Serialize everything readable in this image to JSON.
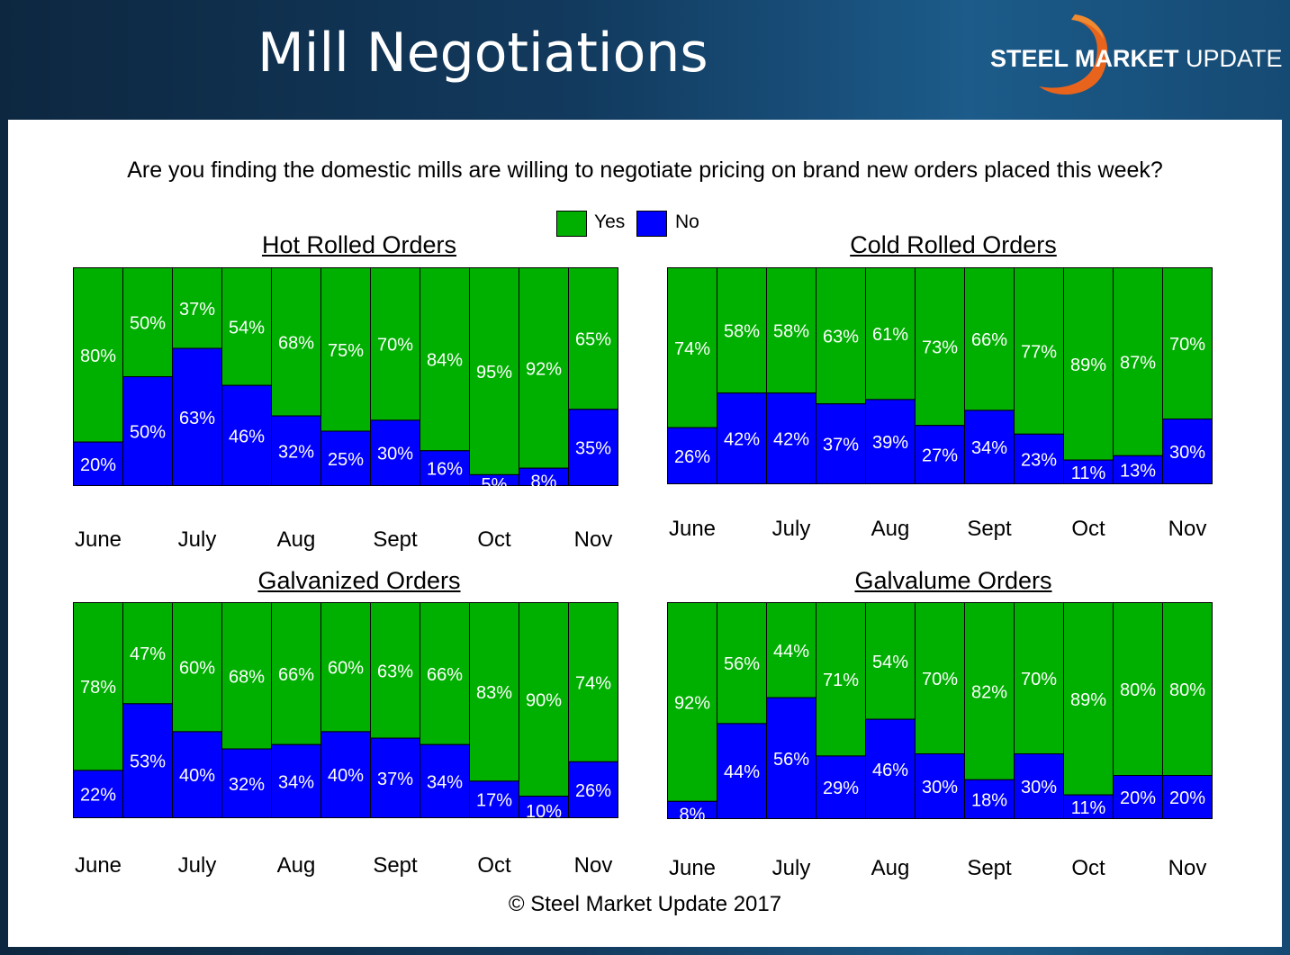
{
  "header": {
    "title": "Mill Negotiations",
    "logo_bold": "STEEL MARKET",
    "logo_light": "UPDATE"
  },
  "question": "Are you finding the domestic mills are willing to negotiate pricing on brand new orders placed this week?",
  "legend": {
    "yes_label": "Yes",
    "no_label": "No",
    "yes_color": "#00b000",
    "no_color": "#0000ff"
  },
  "footer": "© Steel Market Update 2017",
  "chart_data": [
    {
      "type": "bar",
      "stacked": true,
      "title": "Hot Rolled Orders",
      "month_labels": [
        "June",
        "July",
        "Aug",
        "Sept",
        "Oct",
        "Nov"
      ],
      "ylim": [
        0,
        100
      ],
      "series": [
        {
          "name": "No",
          "values": [
            20,
            50,
            63,
            46,
            32,
            25,
            30,
            16,
            5,
            8,
            35
          ],
          "labels": [
            "20%",
            "50%",
            "63%",
            "46%",
            "32%",
            "25%",
            "30%",
            "16%",
            "5%",
            "8%",
            "35%"
          ]
        },
        {
          "name": "Yes",
          "values": [
            80,
            50,
            37,
            54,
            68,
            75,
            70,
            84,
            95,
            92,
            65
          ],
          "labels": [
            "80%",
            "50%",
            "37%",
            "54%",
            "68%",
            "75%",
            "70%",
            "84%",
            "95%",
            "92%",
            "65%"
          ]
        }
      ]
    },
    {
      "type": "bar",
      "stacked": true,
      "title": "Cold Rolled Orders",
      "month_labels": [
        "June",
        "July",
        "Aug",
        "Sept",
        "Oct",
        "Nov"
      ],
      "ylim": [
        0,
        100
      ],
      "series": [
        {
          "name": "No",
          "values": [
            26,
            42,
            42,
            37,
            39,
            27,
            34,
            23,
            11,
            13,
            30
          ],
          "labels": [
            "26%",
            "42%",
            "42%",
            "37%",
            "39%",
            "27%",
            "34%",
            "23%",
            "11%",
            "13%",
            "30%"
          ]
        },
        {
          "name": "Yes",
          "values": [
            74,
            58,
            58,
            63,
            61,
            73,
            66,
            77,
            89,
            87,
            70
          ],
          "labels": [
            "74%",
            "58%",
            "58%",
            "63%",
            "61%",
            "73%",
            "66%",
            "77%",
            "89%",
            "87%",
            "70%"
          ]
        }
      ]
    },
    {
      "type": "bar",
      "stacked": true,
      "title": "Galvanized Orders",
      "month_labels": [
        "June",
        "July",
        "Aug",
        "Sept",
        "Oct",
        "Nov"
      ],
      "ylim": [
        0,
        100
      ],
      "series": [
        {
          "name": "No",
          "values": [
            22,
            53,
            40,
            32,
            34,
            40,
            37,
            34,
            17,
            10,
            26
          ],
          "labels": [
            "22%",
            "53%",
            "40%",
            "32%",
            "34%",
            "40%",
            "37%",
            "34%",
            "17%",
            "10%",
            "26%"
          ]
        },
        {
          "name": "Yes",
          "values": [
            78,
            47,
            60,
            68,
            66,
            60,
            63,
            66,
            83,
            90,
            74
          ],
          "labels": [
            "78%",
            "47%",
            "60%",
            "68%",
            "66%",
            "60%",
            "63%",
            "66%",
            "83%",
            "90%",
            "74%"
          ]
        }
      ]
    },
    {
      "type": "bar",
      "stacked": true,
      "title": "Galvalume Orders",
      "month_labels": [
        "June",
        "July",
        "Aug",
        "Sept",
        "Oct",
        "Nov"
      ],
      "ylim": [
        0,
        100
      ],
      "series": [
        {
          "name": "No",
          "values": [
            8,
            44,
            56,
            29,
            46,
            30,
            18,
            30,
            11,
            20,
            20
          ],
          "labels": [
            "8%",
            "44%",
            "56%",
            "29%",
            "46%",
            "30%",
            "18%",
            "30%",
            "11%",
            "20%",
            "20%"
          ]
        },
        {
          "name": "Yes",
          "values": [
            92,
            56,
            44,
            71,
            54,
            70,
            82,
            70,
            89,
            80,
            80
          ],
          "labels": [
            "92%",
            "56%",
            "44%",
            "71%",
            "54%",
            "70%",
            "82%",
            "70%",
            "89%",
            "80%",
            "80%"
          ]
        }
      ]
    }
  ]
}
